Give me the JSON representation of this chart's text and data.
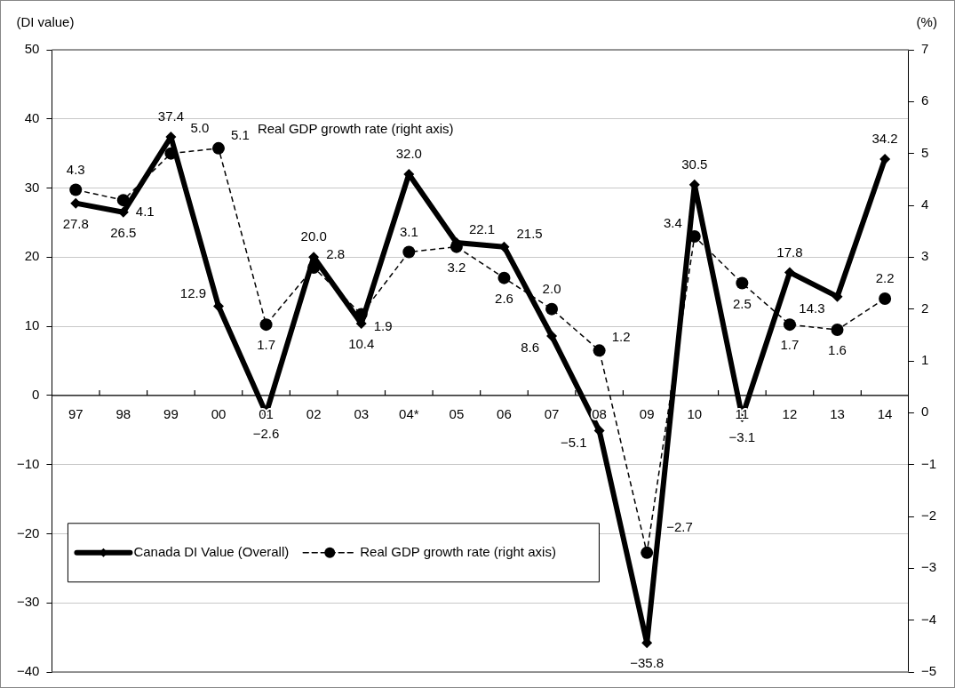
{
  "chart_data": {
    "type": "line",
    "ylabel": "(DI value)",
    "y2label": "(%)",
    "annotations": [
      "Real GDP growth rate (right axis)"
    ],
    "categories": [
      "97",
      "98",
      "99",
      "00",
      "01",
      "02",
      "03",
      "04*",
      "05",
      "06",
      "07",
      "08",
      "09",
      "10",
      "11",
      "12",
      "13",
      "14"
    ],
    "series": [
      {
        "name": "Canada DI Value (Overall)",
        "color": "#000000",
        "marker": "diamond",
        "line_style": "solid",
        "values": [
          27.8,
          26.5,
          37.4,
          12.9,
          -2.6,
          20.0,
          10.4,
          32.0,
          22.1,
          21.5,
          8.6,
          -5.1,
          -35.8,
          30.5,
          -3.1,
          17.8,
          14.3,
          34.2
        ],
        "value_labels": [
          "27.8",
          "26.5",
          "37.4",
          "12.9",
          "−2.6",
          "20.0",
          "10.4",
          "32.0",
          "22.1",
          "21.5",
          "8.6",
          "−5.1",
          "−35.8",
          "30.5",
          "−3.1",
          "17.8",
          "14.3",
          "34.2"
        ]
      },
      {
        "name": "Real GDP growth rate (right axis)",
        "color": "#000000",
        "marker": "circle",
        "line_style": "dashed",
        "axis": "y2",
        "values": [
          4.3,
          4.1,
          5.0,
          5.1,
          1.7,
          2.8,
          1.9,
          3.1,
          3.2,
          2.6,
          2.0,
          1.2,
          -2.7,
          3.4,
          2.5,
          1.7,
          1.6,
          2.2
        ],
        "value_labels": [
          "4.3",
          "4.1",
          "5.0",
          "5.1",
          "1.7",
          "2.8",
          "1.9",
          "3.1",
          "3.2",
          "2.6",
          "2.0",
          "1.2",
          "−2.7",
          "3.4",
          "2.5",
          "1.7",
          "1.6",
          "2.2"
        ]
      }
    ],
    "ylim": [
      -40,
      50
    ],
    "yticks": [
      -40,
      -30,
      -20,
      -10,
      0,
      10,
      20,
      30,
      40,
      50
    ],
    "y2lim": [
      -5,
      7
    ],
    "y2ticks": [
      -5,
      -4,
      -3,
      -2,
      -1,
      0,
      1,
      2,
      3,
      4,
      5,
      6,
      7
    ],
    "grid": "y",
    "legend": "bottom left"
  }
}
